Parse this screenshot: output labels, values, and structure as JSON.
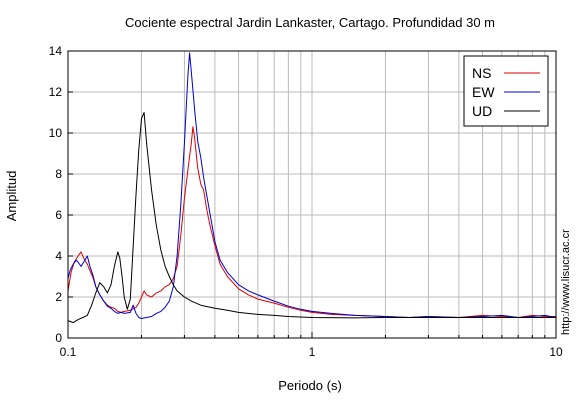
{
  "chart_data": {
    "type": "line",
    "title": "Cociente espectral Jardin Lankaster, Cartago. Profundidad 30 m",
    "xlabel": "Periodo (s)",
    "ylabel": "Amplitud",
    "xscale": "log",
    "xlim": [
      0.1,
      10
    ],
    "ylim": [
      0,
      14
    ],
    "x_ticks": [
      0.1,
      1,
      10
    ],
    "x_tick_labels": [
      "0.1",
      "1",
      "10"
    ],
    "y_ticks": [
      0,
      2,
      4,
      6,
      8,
      10,
      12,
      14
    ],
    "y_tick_labels": [
      "0",
      "2",
      "4",
      "6",
      "8",
      "10",
      "12",
      "14"
    ],
    "grid": true,
    "legend": "top-right",
    "side_note": "http://www.lisucr.ac.cr",
    "series": [
      {
        "name": "NS",
        "color": "#dd0000",
        "points": [
          [
            0.1,
            2.3
          ],
          [
            0.103,
            3.2
          ],
          [
            0.106,
            3.7
          ],
          [
            0.11,
            4.0
          ],
          [
            0.113,
            4.2
          ],
          [
            0.116,
            3.9
          ],
          [
            0.12,
            3.6
          ],
          [
            0.123,
            3.3
          ],
          [
            0.127,
            2.9
          ],
          [
            0.13,
            2.5
          ],
          [
            0.135,
            2.1
          ],
          [
            0.14,
            1.8
          ],
          [
            0.145,
            1.6
          ],
          [
            0.15,
            1.5
          ],
          [
            0.155,
            1.45
          ],
          [
            0.16,
            1.3
          ],
          [
            0.165,
            1.25
          ],
          [
            0.17,
            1.3
          ],
          [
            0.18,
            1.35
          ],
          [
            0.19,
            1.5
          ],
          [
            0.195,
            1.7
          ],
          [
            0.2,
            2.0
          ],
          [
            0.205,
            2.3
          ],
          [
            0.21,
            2.1
          ],
          [
            0.22,
            2.0
          ],
          [
            0.23,
            2.2
          ],
          [
            0.24,
            2.3
          ],
          [
            0.25,
            2.5
          ],
          [
            0.26,
            2.6
          ],
          [
            0.27,
            2.9
          ],
          [
            0.28,
            3.5
          ],
          [
            0.29,
            5.0
          ],
          [
            0.3,
            6.8
          ],
          [
            0.31,
            8.2
          ],
          [
            0.32,
            9.5
          ],
          [
            0.325,
            10.3
          ],
          [
            0.33,
            9.8
          ],
          [
            0.34,
            8.3
          ],
          [
            0.35,
            7.5
          ],
          [
            0.36,
            7.2
          ],
          [
            0.37,
            6.3
          ],
          [
            0.38,
            5.6
          ],
          [
            0.4,
            4.5
          ],
          [
            0.42,
            3.6
          ],
          [
            0.45,
            3.0
          ],
          [
            0.5,
            2.4
          ],
          [
            0.55,
            2.1
          ],
          [
            0.6,
            1.9
          ],
          [
            0.7,
            1.7
          ],
          [
            0.8,
            1.5
          ],
          [
            0.9,
            1.35
          ],
          [
            1.0,
            1.25
          ],
          [
            1.2,
            1.15
          ],
          [
            1.5,
            1.1
          ],
          [
            2.0,
            1.05
          ],
          [
            2.5,
            1.0
          ],
          [
            3.0,
            1.05
          ],
          [
            4.0,
            1.0
          ],
          [
            5.0,
            1.1
          ],
          [
            6.0,
            1.05
          ],
          [
            7.0,
            1.0
          ],
          [
            8.0,
            1.1
          ],
          [
            9.0,
            1.05
          ],
          [
            10.0,
            1.05
          ]
        ]
      },
      {
        "name": "EW",
        "color": "#0000cc",
        "points": [
          [
            0.1,
            2.9
          ],
          [
            0.102,
            3.3
          ],
          [
            0.105,
            3.6
          ],
          [
            0.108,
            3.8
          ],
          [
            0.11,
            3.7
          ],
          [
            0.113,
            3.5
          ],
          [
            0.116,
            3.7
          ],
          [
            0.12,
            4.0
          ],
          [
            0.123,
            3.5
          ],
          [
            0.127,
            3.0
          ],
          [
            0.13,
            2.5
          ],
          [
            0.135,
            2.1
          ],
          [
            0.14,
            1.8
          ],
          [
            0.145,
            1.55
          ],
          [
            0.15,
            1.45
          ],
          [
            0.155,
            1.3
          ],
          [
            0.16,
            1.2
          ],
          [
            0.165,
            1.25
          ],
          [
            0.17,
            1.2
          ],
          [
            0.18,
            1.25
          ],
          [
            0.185,
            1.6
          ],
          [
            0.19,
            1.2
          ],
          [
            0.195,
            1.0
          ],
          [
            0.2,
            0.95
          ],
          [
            0.21,
            1.0
          ],
          [
            0.22,
            1.05
          ],
          [
            0.23,
            1.2
          ],
          [
            0.24,
            1.3
          ],
          [
            0.25,
            1.5
          ],
          [
            0.26,
            1.8
          ],
          [
            0.27,
            2.5
          ],
          [
            0.28,
            4.0
          ],
          [
            0.29,
            6.5
          ],
          [
            0.3,
            9.5
          ],
          [
            0.31,
            12.8
          ],
          [
            0.315,
            13.9
          ],
          [
            0.32,
            13.0
          ],
          [
            0.33,
            11.2
          ],
          [
            0.34,
            9.6
          ],
          [
            0.35,
            8.8
          ],
          [
            0.36,
            7.8
          ],
          [
            0.37,
            7.0
          ],
          [
            0.38,
            6.2
          ],
          [
            0.4,
            4.7
          ],
          [
            0.42,
            3.8
          ],
          [
            0.45,
            3.2
          ],
          [
            0.5,
            2.6
          ],
          [
            0.55,
            2.3
          ],
          [
            0.6,
            2.1
          ],
          [
            0.7,
            1.8
          ],
          [
            0.8,
            1.55
          ],
          [
            0.9,
            1.4
          ],
          [
            1.0,
            1.3
          ],
          [
            1.2,
            1.2
          ],
          [
            1.5,
            1.1
          ],
          [
            2.0,
            1.05
          ],
          [
            2.5,
            1.0
          ],
          [
            3.0,
            1.05
          ],
          [
            4.0,
            1.0
          ],
          [
            5.0,
            1.05
          ],
          [
            6.0,
            1.1
          ],
          [
            7.0,
            1.0
          ],
          [
            8.0,
            1.05
          ],
          [
            9.0,
            1.1
          ],
          [
            10.0,
            1.0
          ]
        ]
      },
      {
        "name": "UD",
        "color": "#000000",
        "points": [
          [
            0.1,
            0.85
          ],
          [
            0.105,
            0.75
          ],
          [
            0.11,
            0.9
          ],
          [
            0.115,
            1.0
          ],
          [
            0.12,
            1.1
          ],
          [
            0.125,
            1.6
          ],
          [
            0.13,
            2.2
          ],
          [
            0.135,
            2.7
          ],
          [
            0.14,
            2.5
          ],
          [
            0.145,
            2.2
          ],
          [
            0.15,
            2.6
          ],
          [
            0.155,
            3.5
          ],
          [
            0.16,
            4.2
          ],
          [
            0.163,
            3.9
          ],
          [
            0.167,
            2.9
          ],
          [
            0.17,
            2.0
          ],
          [
            0.175,
            1.4
          ],
          [
            0.18,
            1.9
          ],
          [
            0.185,
            4.5
          ],
          [
            0.19,
            7.0
          ],
          [
            0.195,
            9.2
          ],
          [
            0.2,
            10.7
          ],
          [
            0.205,
            11.0
          ],
          [
            0.21,
            9.5
          ],
          [
            0.22,
            7.2
          ],
          [
            0.23,
            5.5
          ],
          [
            0.24,
            4.3
          ],
          [
            0.25,
            3.5
          ],
          [
            0.26,
            3.0
          ],
          [
            0.27,
            2.6
          ],
          [
            0.28,
            2.3
          ],
          [
            0.3,
            2.0
          ],
          [
            0.32,
            1.8
          ],
          [
            0.35,
            1.6
          ],
          [
            0.4,
            1.45
          ],
          [
            0.45,
            1.35
          ],
          [
            0.5,
            1.25
          ],
          [
            0.6,
            1.15
          ],
          [
            0.7,
            1.1
          ],
          [
            0.8,
            1.05
          ],
          [
            1.0,
            1.0
          ],
          [
            1.5,
            0.98
          ],
          [
            2.0,
            1.0
          ],
          [
            3.0,
            1.0
          ],
          [
            5.0,
            1.0
          ],
          [
            10.0,
            1.0
          ]
        ]
      }
    ]
  }
}
